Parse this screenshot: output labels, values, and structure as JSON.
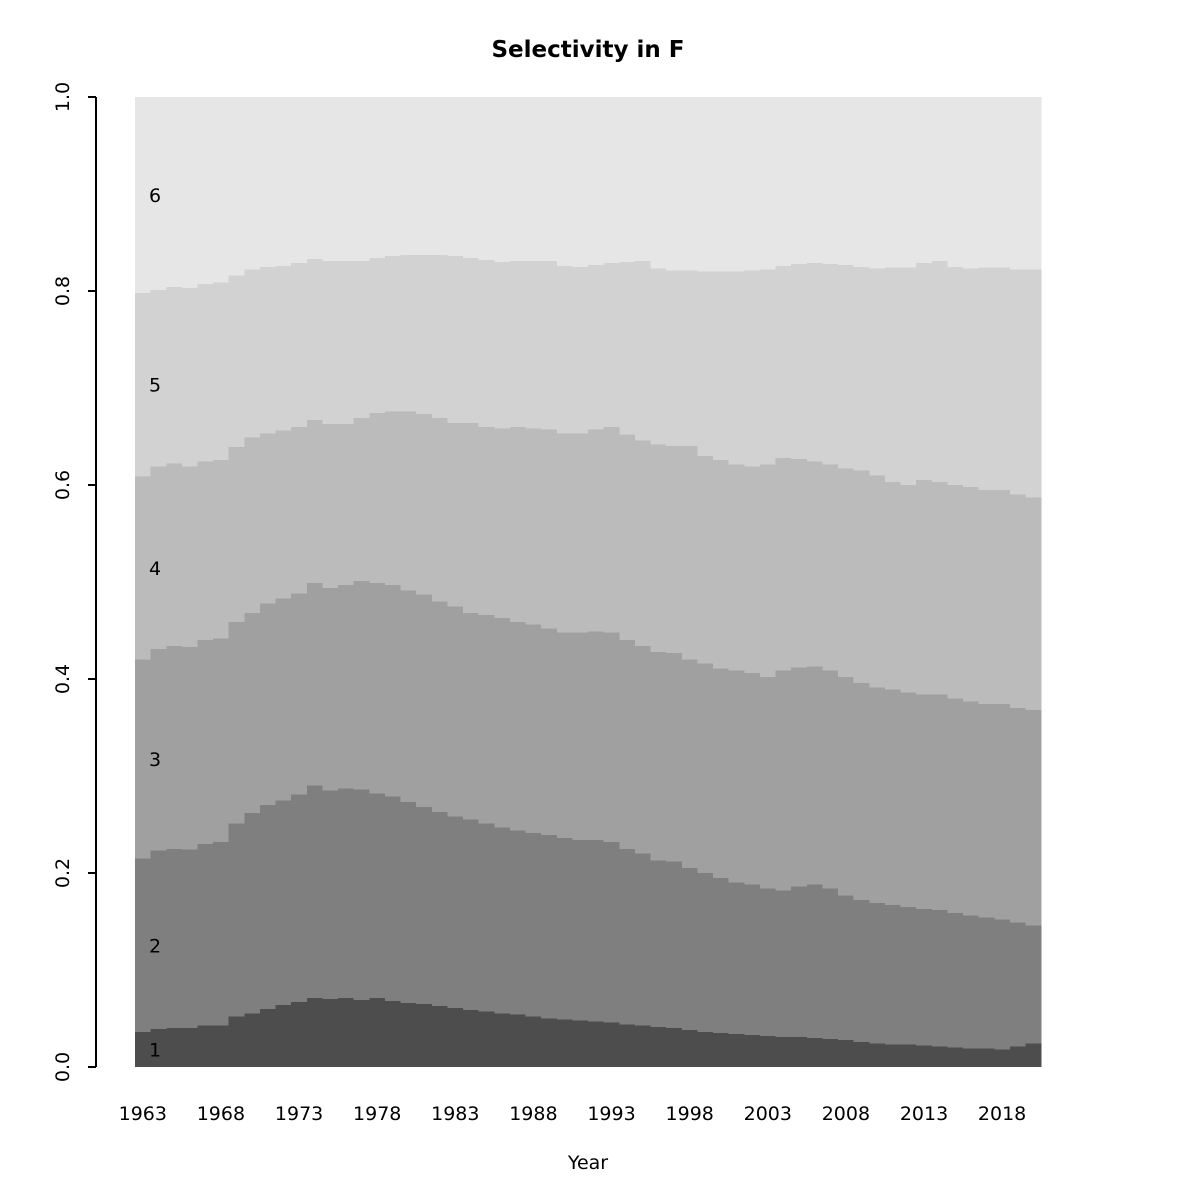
{
  "chart_data": {
    "type": "bar",
    "stacked": true,
    "title": "Selectivity in F",
    "xlabel": "Year",
    "ylabel": "",
    "ylim": [
      0.0,
      1.0
    ],
    "grid": false,
    "legend": "none",
    "x": [
      1963,
      1964,
      1965,
      1966,
      1967,
      1968,
      1969,
      1970,
      1971,
      1972,
      1973,
      1974,
      1975,
      1976,
      1977,
      1978,
      1979,
      1980,
      1981,
      1982,
      1983,
      1984,
      1985,
      1986,
      1987,
      1988,
      1989,
      1990,
      1991,
      1992,
      1993,
      1994,
      1995,
      1996,
      1997,
      1998,
      1999,
      2000,
      2001,
      2002,
      2003,
      2004,
      2005,
      2006,
      2007,
      2008,
      2009,
      2010,
      2011,
      2012,
      2013,
      2014,
      2015,
      2016,
      2017,
      2018,
      2019,
      2020
    ],
    "x_tick_labels": [
      "1963",
      "1968",
      "1973",
      "1978",
      "1983",
      "1988",
      "1993",
      "1998",
      "2003",
      "2008",
      "2013",
      "2018"
    ],
    "y_tick_values": [
      0.0,
      0.2,
      0.4,
      0.6,
      0.8,
      1.0
    ],
    "y_tick_labels": [
      "0.0",
      "0.2",
      "0.4",
      "0.6",
      "0.8",
      "1.0"
    ],
    "band_labels_inside_plot": [
      "1",
      "2",
      "3",
      "4",
      "5",
      "6"
    ],
    "series": [
      {
        "name": "1",
        "color": "#4D4D4D",
        "values": [
          0.036,
          0.039,
          0.04,
          0.04,
          0.043,
          0.043,
          0.052,
          0.055,
          0.06,
          0.064,
          0.067,
          0.071,
          0.07,
          0.071,
          0.069,
          0.071,
          0.068,
          0.066,
          0.065,
          0.063,
          0.061,
          0.059,
          0.057,
          0.055,
          0.054,
          0.052,
          0.05,
          0.049,
          0.048,
          0.047,
          0.046,
          0.044,
          0.043,
          0.041,
          0.04,
          0.038,
          0.036,
          0.035,
          0.034,
          0.033,
          0.032,
          0.031,
          0.031,
          0.03,
          0.029,
          0.028,
          0.026,
          0.024,
          0.023,
          0.023,
          0.022,
          0.021,
          0.02,
          0.019,
          0.019,
          0.018,
          0.021,
          0.024
        ]
      },
      {
        "name": "2",
        "color": "#7F7F7F",
        "values": [
          0.179,
          0.184,
          0.185,
          0.184,
          0.187,
          0.189,
          0.199,
          0.207,
          0.21,
          0.211,
          0.214,
          0.219,
          0.215,
          0.216,
          0.217,
          0.211,
          0.211,
          0.207,
          0.203,
          0.2,
          0.197,
          0.196,
          0.194,
          0.192,
          0.19,
          0.189,
          0.189,
          0.187,
          0.186,
          0.187,
          0.186,
          0.181,
          0.177,
          0.172,
          0.172,
          0.167,
          0.164,
          0.16,
          0.156,
          0.155,
          0.152,
          0.151,
          0.155,
          0.158,
          0.155,
          0.149,
          0.146,
          0.145,
          0.144,
          0.142,
          0.141,
          0.141,
          0.139,
          0.137,
          0.135,
          0.134,
          0.128,
          0.122
        ]
      },
      {
        "name": "3",
        "color": "#A0A0A0",
        "values": [
          0.205,
          0.208,
          0.209,
          0.209,
          0.21,
          0.21,
          0.208,
          0.206,
          0.208,
          0.208,
          0.207,
          0.209,
          0.209,
          0.21,
          0.215,
          0.217,
          0.218,
          0.218,
          0.219,
          0.217,
          0.217,
          0.213,
          0.215,
          0.216,
          0.215,
          0.215,
          0.213,
          0.212,
          0.214,
          0.215,
          0.216,
          0.215,
          0.214,
          0.215,
          0.215,
          0.215,
          0.216,
          0.216,
          0.219,
          0.218,
          0.218,
          0.227,
          0.226,
          0.225,
          0.225,
          0.225,
          0.224,
          0.222,
          0.222,
          0.221,
          0.221,
          0.222,
          0.221,
          0.221,
          0.22,
          0.222,
          0.221,
          0.222
        ]
      },
      {
        "name": "4",
        "color": "#BBBBBB",
        "values": [
          0.189,
          0.188,
          0.188,
          0.186,
          0.184,
          0.184,
          0.18,
          0.181,
          0.175,
          0.173,
          0.172,
          0.168,
          0.169,
          0.166,
          0.168,
          0.175,
          0.179,
          0.185,
          0.186,
          0.189,
          0.189,
          0.196,
          0.194,
          0.195,
          0.201,
          0.202,
          0.205,
          0.205,
          0.205,
          0.208,
          0.212,
          0.212,
          0.212,
          0.214,
          0.213,
          0.22,
          0.214,
          0.215,
          0.212,
          0.213,
          0.219,
          0.219,
          0.215,
          0.211,
          0.212,
          0.215,
          0.219,
          0.219,
          0.214,
          0.214,
          0.221,
          0.219,
          0.22,
          0.221,
          0.221,
          0.221,
          0.22,
          0.219
        ]
      },
      {
        "name": "5",
        "color": "#D2D2D2",
        "values": [
          0.189,
          0.182,
          0.182,
          0.184,
          0.183,
          0.183,
          0.177,
          0.173,
          0.172,
          0.17,
          0.169,
          0.166,
          0.168,
          0.168,
          0.162,
          0.16,
          0.16,
          0.161,
          0.164,
          0.168,
          0.172,
          0.17,
          0.172,
          0.172,
          0.171,
          0.173,
          0.174,
          0.173,
          0.172,
          0.17,
          0.169,
          0.178,
          0.185,
          0.181,
          0.181,
          0.181,
          0.19,
          0.194,
          0.199,
          0.202,
          0.201,
          0.198,
          0.201,
          0.205,
          0.207,
          0.21,
          0.21,
          0.213,
          0.221,
          0.224,
          0.224,
          0.228,
          0.225,
          0.225,
          0.229,
          0.229,
          0.232,
          0.235
        ]
      },
      {
        "name": "6",
        "color": "#E6E6E6",
        "values": [
          0.202,
          0.199,
          0.196,
          0.197,
          0.193,
          0.191,
          0.184,
          0.178,
          0.175,
          0.174,
          0.171,
          0.167,
          0.169,
          0.169,
          0.169,
          0.166,
          0.164,
          0.163,
          0.163,
          0.163,
          0.164,
          0.166,
          0.168,
          0.17,
          0.169,
          0.169,
          0.169,
          0.174,
          0.175,
          0.173,
          0.171,
          0.17,
          0.169,
          0.177,
          0.179,
          0.179,
          0.18,
          0.18,
          0.18,
          0.179,
          0.178,
          0.174,
          0.172,
          0.171,
          0.172,
          0.173,
          0.175,
          0.177,
          0.176,
          0.176,
          0.171,
          0.169,
          0.175,
          0.177,
          0.176,
          0.176,
          0.178,
          0.178
        ]
      }
    ],
    "axis_color": "#000000",
    "text_color": "#000000",
    "background_color": "#ffffff"
  }
}
